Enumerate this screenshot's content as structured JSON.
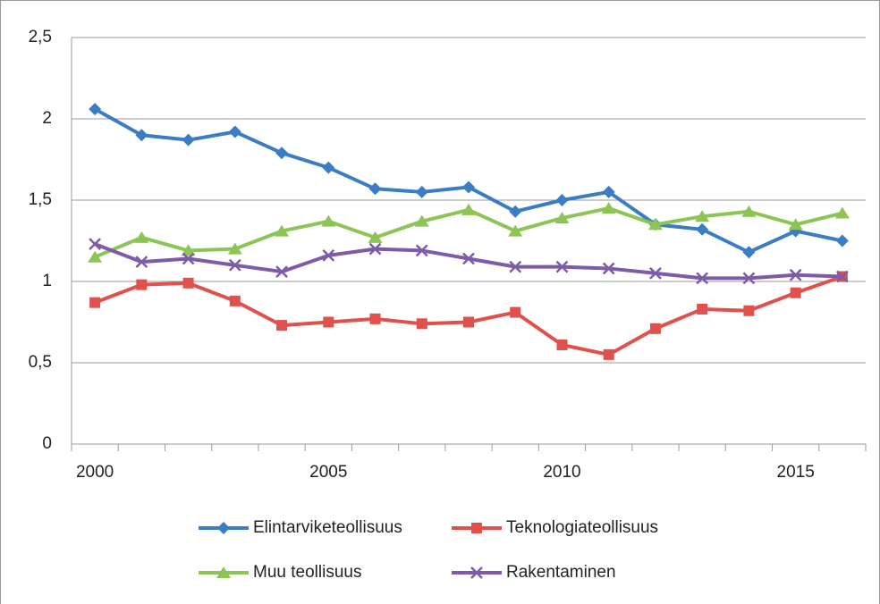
{
  "chart_data": {
    "type": "line",
    "categories": [
      "2000",
      null,
      null,
      null,
      null,
      "2005",
      null,
      null,
      null,
      null,
      "2010",
      null,
      null,
      null,
      null,
      "2015",
      null
    ],
    "ylim": [
      0,
      2.5
    ],
    "yticks": [
      0,
      {
        "value": 0.5,
        "label": "0,5"
      },
      1,
      {
        "value": 1.5,
        "label": "1,5"
      },
      2,
      {
        "value": 2.5,
        "label": "2,5"
      }
    ],
    "grid": true,
    "legend": "bottom",
    "series": [
      {
        "name": "Elintarviketeollisuus",
        "color": "#3b7dc4",
        "marker": "diamond",
        "values": [
          2.06,
          1.9,
          1.87,
          1.92,
          1.79,
          1.7,
          1.57,
          1.55,
          1.58,
          1.43,
          1.5,
          1.55,
          1.35,
          1.32,
          1.18,
          1.31,
          1.25
        ]
      },
      {
        "name": "Teknologiateollisuus",
        "color": "#e0504c",
        "marker": "square",
        "values": [
          0.87,
          0.98,
          0.99,
          0.88,
          0.73,
          0.75,
          0.77,
          0.74,
          0.75,
          0.81,
          0.61,
          0.55,
          0.71,
          0.83,
          0.82,
          0.93,
          1.03
        ]
      },
      {
        "name": "Muu teollisuus",
        "color": "#8cc455",
        "marker": "triangle",
        "values": [
          1.15,
          1.27,
          1.19,
          1.2,
          1.31,
          1.37,
          1.27,
          1.37,
          1.44,
          1.31,
          1.39,
          1.45,
          1.35,
          1.4,
          1.43,
          1.35,
          1.42
        ]
      },
      {
        "name": "Rakentaminen",
        "color": "#7e5ba8",
        "marker": "x",
        "values": [
          1.23,
          1.12,
          1.14,
          1.1,
          1.06,
          1.16,
          1.2,
          1.19,
          1.14,
          1.09,
          1.09,
          1.08,
          1.05,
          1.02,
          1.02,
          1.04,
          1.03
        ]
      }
    ]
  }
}
